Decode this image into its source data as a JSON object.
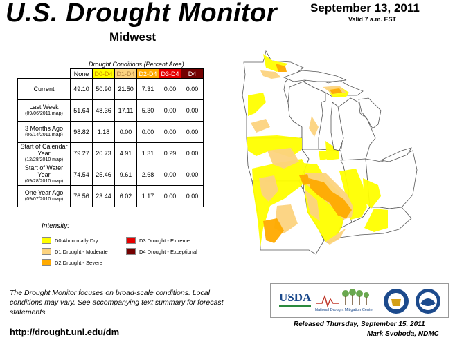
{
  "header": {
    "title": "U.S. Drought Monitor",
    "region": "Midwest",
    "date": "September 13, 2011",
    "valid": "Valid 7 a.m. EST"
  },
  "table": {
    "caption": "Drought Conditions (Percent Area)",
    "columns": [
      "None",
      "D0-D4",
      "D1-D4",
      "D2-D4",
      "D3-D4",
      "D4"
    ],
    "column_colors": [
      "#ffffff",
      "#ffff00",
      "#fcd37f",
      "#ffaa00",
      "#e60000",
      "#730000"
    ],
    "column_text_colors": [
      "#000000",
      "#d08a00",
      "#b08040",
      "#ffffff",
      "#ffffff",
      "#ffffff"
    ],
    "rows": [
      {
        "label": "Current",
        "sub": "",
        "values": [
          "49.10",
          "50.90",
          "21.50",
          "7.31",
          "0.00",
          "0.00"
        ]
      },
      {
        "label": "Last Week",
        "sub": "(09/06/2011 map)",
        "values": [
          "51.64",
          "48.36",
          "17.11",
          "5.30",
          "0.00",
          "0.00"
        ]
      },
      {
        "label": "3 Months Ago",
        "sub": "(06/14/2011 map)",
        "values": [
          "98.82",
          "1.18",
          "0.00",
          "0.00",
          "0.00",
          "0.00"
        ]
      },
      {
        "label": "Start of Calendar Year",
        "sub": "(12/28/2010 map)",
        "values": [
          "79.27",
          "20.73",
          "4.91",
          "1.31",
          "0.29",
          "0.00"
        ]
      },
      {
        "label": "Start of Water Year",
        "sub": "(09/28/2010 map)",
        "values": [
          "74.54",
          "25.46",
          "9.61",
          "2.68",
          "0.00",
          "0.00"
        ]
      },
      {
        "label": "One Year Ago",
        "sub": "(09/07/2010 map)",
        "values": [
          "76.56",
          "23.44",
          "6.02",
          "1.17",
          "0.00",
          "0.00"
        ]
      }
    ]
  },
  "legend": {
    "title": "Intensity:",
    "items": [
      {
        "label": "D0 Abnormally Dry",
        "color": "#ffff00"
      },
      {
        "label": "D1 Drought - Moderate",
        "color": "#fcd37f"
      },
      {
        "label": "D2 Drought - Severe",
        "color": "#ffaa00"
      },
      {
        "label": "D3 Drought - Extreme",
        "color": "#e60000"
      },
      {
        "label": "D4 Drought - Exceptional",
        "color": "#730000"
      }
    ]
  },
  "footer": {
    "note": "The Drought Monitor focuses on broad-scale conditions. Local conditions may vary. See accompanying text summary for forecast statements.",
    "url": "http://drought.unl.edu/dm",
    "released": "Released Thursday, September 15, 2011",
    "author": "Mark Svoboda, NDMC"
  },
  "logos": {
    "usda": "USDA",
    "ndmc": "National Drought Mitigation Center"
  }
}
